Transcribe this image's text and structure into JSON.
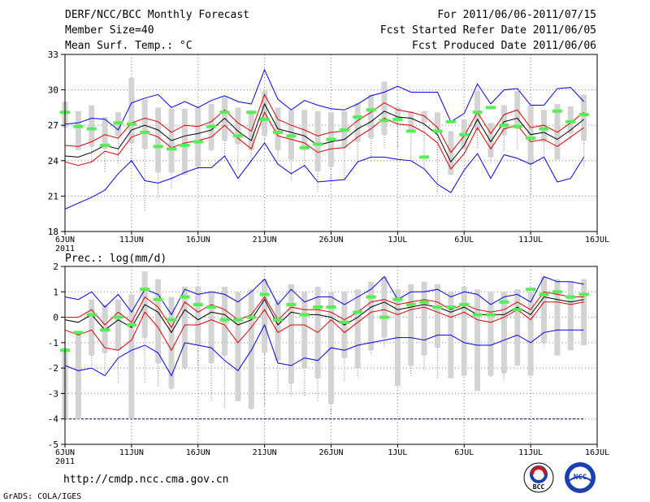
{
  "header": {
    "title": "DERF/NCC/BCC Monthly Forecast",
    "member_size": "Member Size=40",
    "variable": "Mean Surf. Temp.: °C",
    "period": "For 2011/06/06-2011/07/15",
    "started": "Fcst Started Refer Date 2011/06/05",
    "produced": "Fcst Produced Date 2011/06/06"
  },
  "footer": {
    "url": "http://cmdp.ncc.cma.gov.cn",
    "credit": "GrADS: COLA/IGES",
    "logo_bcc": "BCC",
    "logo_ncc": "NCC"
  },
  "colors": {
    "frame": "#000000",
    "grid": "#7f7f7f",
    "box": "#d3d3d3",
    "whisker": "#8a8a8a",
    "outer": "#0000ee",
    "inner": "#e00000",
    "mean": "#000000",
    "marker": "#55ee55"
  },
  "chart_data": [
    {
      "type": "line",
      "title": "Mean Surf. Temp.: °C",
      "ylim": [
        18,
        33
      ],
      "yticks": [
        18,
        21,
        24,
        27,
        30,
        33
      ],
      "xlim": [
        0,
        40
      ],
      "x_ticks": [
        {
          "x": 0,
          "label": "6JUN",
          "sub": "2011"
        },
        {
          "x": 5,
          "label": "11JUN"
        },
        {
          "x": 10,
          "label": "16JUN"
        },
        {
          "x": 15,
          "label": "21JUN"
        },
        {
          "x": 20,
          "label": "26JUN"
        },
        {
          "x": 25,
          "label": "1JUL"
        },
        {
          "x": 30,
          "label": "6JUL"
        },
        {
          "x": 35,
          "label": "11JUL"
        },
        {
          "x": 40,
          "label": "16JUL"
        }
      ],
      "x": [
        0,
        1,
        2,
        3,
        4,
        5,
        6,
        7,
        8,
        9,
        10,
        11,
        12,
        13,
        14,
        15,
        16,
        17,
        18,
        19,
        20,
        21,
        22,
        23,
        24,
        25,
        26,
        27,
        28,
        29,
        30,
        31,
        32,
        33,
        34,
        35,
        36,
        37,
        38,
        39
      ],
      "series": [
        {
          "name": "upper envelope",
          "role": "outer",
          "values": [
            27.1,
            27.2,
            27.6,
            27.5,
            26.6,
            28.9,
            29.3,
            29.6,
            28.5,
            29.0,
            28.5,
            29.1,
            29.5,
            29.0,
            28.8,
            31.7,
            29.2,
            28.3,
            29.1,
            28.7,
            28.4,
            28.3,
            28.8,
            29.5,
            29.8,
            30.3,
            29.8,
            29.8,
            29.8,
            27.3,
            28.0,
            30.5,
            28.8,
            30.0,
            30.1,
            28.7,
            28.7,
            30.1,
            30.2,
            29.0
          ]
        },
        {
          "name": "upper quartile",
          "role": "inner",
          "values": [
            25.3,
            25.2,
            25.6,
            26.2,
            25.9,
            27.2,
            27.6,
            27.3,
            26.4,
            27.0,
            26.9,
            27.3,
            28.3,
            27.2,
            26.5,
            29.6,
            27.5,
            27.0,
            26.6,
            26.1,
            26.4,
            26.5,
            27.4,
            28.1,
            28.9,
            28.3,
            28.1,
            27.8,
            26.8,
            24.7,
            26.1,
            28.1,
            26.3,
            27.9,
            28.3,
            26.8,
            27.0,
            26.4,
            27.2,
            28.1
          ]
        },
        {
          "name": "ensemble mean",
          "role": "mean",
          "values": [
            24.4,
            24.3,
            24.7,
            25.3,
            25.0,
            26.6,
            27.0,
            26.6,
            25.7,
            26.1,
            26.3,
            26.6,
            27.6,
            26.5,
            25.7,
            28.8,
            26.7,
            26.4,
            26.1,
            25.3,
            25.6,
            25.8,
            26.7,
            27.3,
            28.2,
            27.7,
            27.6,
            27.1,
            26.2,
            23.9,
            25.3,
            27.5,
            25.6,
            27.3,
            27.6,
            26.2,
            26.4,
            25.8,
            26.6,
            27.5
          ]
        },
        {
          "name": "lower quartile",
          "role": "inner",
          "values": [
            23.9,
            23.6,
            23.9,
            24.8,
            24.5,
            26.0,
            26.4,
            26.0,
            25.1,
            25.5,
            25.7,
            26.0,
            27.0,
            25.9,
            25.0,
            28.1,
            26.1,
            25.8,
            25.5,
            24.7,
            25.0,
            25.1,
            26.0,
            26.7,
            27.6,
            27.1,
            27.0,
            26.4,
            25.5,
            23.3,
            24.6,
            26.8,
            25.0,
            26.7,
            27.0,
            25.6,
            25.8,
            25.2,
            26.0,
            26.8
          ]
        },
        {
          "name": "lower envelope",
          "role": "outer",
          "values": [
            19.9,
            20.4,
            20.9,
            21.5,
            22.9,
            24.0,
            22.3,
            22.1,
            22.5,
            23.0,
            23.4,
            23.4,
            24.4,
            22.5,
            24.0,
            25.5,
            23.7,
            22.9,
            23.6,
            22.2,
            22.3,
            22.4,
            23.9,
            24.3,
            24.3,
            24.1,
            24.0,
            23.3,
            22.0,
            21.3,
            23.2,
            24.6,
            22.5,
            24.5,
            24.2,
            23.7,
            24.3,
            22.2,
            22.5,
            24.3
          ]
        }
      ],
      "boxes": {
        "q_low": [
          26.8,
          24.9,
          25.2,
          25.0,
          26.1,
          25.5,
          25.0,
          23.0,
          23.0,
          22.8,
          23.5,
          24.9,
          25.7,
          25.4,
          24.9,
          26.1,
          24.9,
          24.1,
          24.9,
          23.1,
          23.5,
          25.1,
          25.6,
          25.9,
          26.2,
          27.3,
          26.5,
          27.2,
          26.6,
          22.8,
          25.0,
          26.6,
          24.3,
          26.2,
          26.7,
          23.7,
          25.6,
          24.1,
          26.3,
          25.7
        ],
        "q_high": [
          29.0,
          28.2,
          28.7,
          27.7,
          28.1,
          31.0,
          29.2,
          28.5,
          28.4,
          28.4,
          28.5,
          28.8,
          29.4,
          28.5,
          28.2,
          29.9,
          28.5,
          28.3,
          28.3,
          28.2,
          28.1,
          28.2,
          28.9,
          29.6,
          30.7,
          28.5,
          28.2,
          28.2,
          28.1,
          26.5,
          27.5,
          29.9,
          27.2,
          28.7,
          29.9,
          28.7,
          28.3,
          28.8,
          28.6,
          29.6
        ],
        "w_low": [
          26.8,
          24.9,
          23.8,
          23.0,
          23.6,
          23.8,
          19.7,
          20.8,
          21.6,
          23.4,
          23.4,
          24.7,
          24.3,
          22.9,
          23.8,
          24.9,
          23.9,
          22.3,
          23.2,
          21.4,
          21.9,
          22.3,
          23.8,
          24.0,
          25.0,
          25.0,
          23.8,
          23.3,
          21.2,
          23.6,
          25.4,
          25.1,
          23.8,
          24.8,
          24.9,
          21.1,
          24.2,
          24.7,
          25.7,
          23.4
        ]
      },
      "markers": [
        28.1,
        26.9,
        26.7,
        25.3,
        27.2,
        27.1,
        26.4,
        25.2,
        25.0,
        25.3,
        25.6,
        26.9,
        28.1,
        26.1,
        28.1,
        27.5,
        26.4,
        26.1,
        25.1,
        25.4,
        25.8,
        26.6,
        27.7,
        28.3,
        27.4,
        27.5,
        26.5,
        24.3,
        26.5,
        27.3,
        26.2,
        28.1,
        28.5,
        27.0,
        26.9,
        25.9,
        26.7,
        28.2,
        27.3,
        27.9
      ]
    },
    {
      "type": "line",
      "title": "Prec.: log(mm/d)",
      "ylim": [
        -5,
        2
      ],
      "yticks": [
        -5,
        -4,
        -3,
        -2,
        -1,
        0,
        1,
        2
      ],
      "xlim": [
        0,
        40
      ],
      "x_ticks": [
        {
          "x": 0,
          "label": "6JUN",
          "sub": "2011"
        },
        {
          "x": 5,
          "label": "11JUN"
        },
        {
          "x": 10,
          "label": "16JUN"
        },
        {
          "x": 15,
          "label": "21JUN"
        },
        {
          "x": 20,
          "label": "26JUN"
        },
        {
          "x": 25,
          "label": "1JUL"
        },
        {
          "x": 30,
          "label": "6JUL"
        },
        {
          "x": 35,
          "label": "11JUL"
        },
        {
          "x": 40,
          "label": "16JUL"
        }
      ],
      "x": [
        0,
        1,
        2,
        3,
        4,
        5,
        6,
        7,
        8,
        9,
        10,
        11,
        12,
        13,
        14,
        15,
        16,
        17,
        18,
        19,
        20,
        21,
        22,
        23,
        24,
        25,
        26,
        27,
        28,
        29,
        30,
        31,
        32,
        33,
        34,
        35,
        36,
        37,
        38,
        39
      ],
      "floor_line": -4,
      "series": [
        {
          "name": "upper envelope",
          "role": "outer",
          "values": [
            0.8,
            0.7,
            1.0,
            0.4,
            0.9,
            0.2,
            1.1,
            0.9,
            0.1,
            1.1,
            0.9,
            1.0,
            0.9,
            0.6,
            1.0,
            1.5,
            0.5,
            1.1,
            0.6,
            0.8,
            0.8,
            0.5,
            0.8,
            1.1,
            1.6,
            0.7,
            1.0,
            1.0,
            1.1,
            0.8,
            1.0,
            0.9,
            0.5,
            0.8,
            0.9,
            0.6,
            1.6,
            1.4,
            1.4,
            1.3
          ]
        },
        {
          "name": "upper quartile",
          "role": "inner",
          "values": [
            0.0,
            0.0,
            0.3,
            -0.3,
            0.2,
            -0.2,
            0.8,
            0.4,
            -0.4,
            0.6,
            0.2,
            0.5,
            0.3,
            -0.1,
            0.1,
            0.8,
            -0.1,
            0.4,
            0.3,
            0.3,
            0.2,
            -0.1,
            0.2,
            0.6,
            0.7,
            0.5,
            0.6,
            0.7,
            0.6,
            0.3,
            0.5,
            0.3,
            0.2,
            0.3,
            0.6,
            0.3,
            1.0,
            0.9,
            0.8,
            0.8
          ]
        },
        {
          "name": "ensemble mean",
          "role": "mean",
          "values": [
            -0.1,
            -0.2,
            0.1,
            -0.5,
            -0.1,
            -0.4,
            0.5,
            0.2,
            -0.6,
            0.3,
            -0.1,
            0.2,
            0.1,
            -0.3,
            -0.1,
            0.7,
            -0.3,
            0.2,
            0.1,
            0.1,
            0.0,
            -0.3,
            0.0,
            0.4,
            0.6,
            0.3,
            0.4,
            0.5,
            0.4,
            0.2,
            0.4,
            0.1,
            0.1,
            0.1,
            0.4,
            0.1,
            0.8,
            0.7,
            0.6,
            0.7
          ]
        },
        {
          "name": "lower quartile",
          "role": "inner",
          "values": [
            -0.5,
            -0.7,
            -0.5,
            -1.2,
            -1.3,
            -0.9,
            0.2,
            -0.4,
            -1.3,
            -0.3,
            -0.3,
            -0.1,
            -0.3,
            -1.0,
            -0.4,
            0.3,
            -0.6,
            -0.3,
            -0.3,
            -0.6,
            -0.1,
            -0.6,
            -0.2,
            0.2,
            0.3,
            0.1,
            0.3,
            0.4,
            0.2,
            0.0,
            0.2,
            -0.1,
            -0.2,
            0.0,
            0.3,
            -0.1,
            0.6,
            0.6,
            0.5,
            0.6
          ]
        },
        {
          "name": "lower envelope",
          "role": "outer",
          "values": [
            -1.9,
            -2.1,
            -2.0,
            -2.3,
            -1.6,
            -1.3,
            -1.1,
            -1.4,
            -2.3,
            -1.0,
            -1.1,
            -1.2,
            -1.7,
            -2.1,
            -1.3,
            -0.3,
            -1.8,
            -1.9,
            -1.6,
            -1.7,
            -1.2,
            -1.3,
            -1.1,
            -1.0,
            -0.9,
            -0.8,
            -0.8,
            -0.9,
            -0.7,
            -0.7,
            -1.0,
            -1.1,
            -1.1,
            -0.9,
            -0.7,
            -1.0,
            -0.6,
            -0.5,
            -0.5,
            -0.5
          ]
        }
      ],
      "boxes": {
        "q_low": [
          -4.0,
          -4.0,
          -1.5,
          -1.4,
          -1.3,
          -4.0,
          -0.8,
          -1.8,
          -2.8,
          -2.0,
          -1.1,
          -1.8,
          -1.5,
          -3.3,
          -3.6,
          -1.4,
          -1.7,
          -2.6,
          -2.0,
          -2.4,
          -3.4,
          -1.6,
          -2.0,
          -1.3,
          -0.8,
          -2.7,
          -1.9,
          -1.5,
          -1.2,
          -2.4,
          -2.3,
          -2.9,
          -2.3,
          -2.2,
          -1.9,
          -2.3,
          -1.0,
          -1.5,
          -1.3,
          -1.1
        ],
        "q_high": [
          -1.2,
          -0.6,
          0.7,
          0.5,
          0.7,
          0.9,
          1.8,
          1.5,
          0.8,
          1.2,
          1.2,
          1.0,
          1.2,
          1.0,
          1.1,
          1.5,
          0.7,
          1.3,
          1.0,
          1.2,
          1.0,
          1.0,
          1.1,
          1.4,
          1.6,
          1.1,
          1.3,
          1.4,
          1.3,
          1.0,
          1.2,
          1.1,
          1.0,
          1.0,
          1.1,
          1.0,
          1.6,
          1.5,
          1.4,
          1.5
        ],
        "w_low": [
          -4.0,
          -4.0,
          -1.9,
          -2.2,
          -2.6,
          -4.0,
          -2.6,
          -2.7,
          -2.9,
          -2.1,
          -2.1,
          -3.3,
          -3.6,
          -3.3,
          -3.7,
          -3.5,
          -3.0,
          -3.1,
          -3.1,
          -3.3,
          -4.0,
          -2.5,
          -2.4,
          -1.5,
          -1.2,
          -2.7,
          -2.3,
          -2.1,
          -2.4,
          -2.4,
          -2.3,
          -2.8,
          -2.4,
          -2.5,
          -1.9,
          -2.3,
          -1.2,
          -1.5,
          -1.3,
          -1.1
        ]
      },
      "markers": [
        -1.3,
        -0.6,
        0.1,
        -0.5,
        0.0,
        -0.3,
        1.1,
        0.7,
        -0.1,
        0.8,
        0.5,
        0.4,
        -0.1,
        -0.1,
        0.0,
        0.9,
        -0.1,
        0.5,
        0.1,
        0.4,
        0.4,
        -0.2,
        0.2,
        0.8,
        0.0,
        0.7,
        0.5,
        0.6,
        0.4,
        0.4,
        0.5,
        0.1,
        0.1,
        0.6,
        0.3,
        1.1,
        0.9,
        1.0,
        0.8,
        0.9
      ]
    }
  ]
}
